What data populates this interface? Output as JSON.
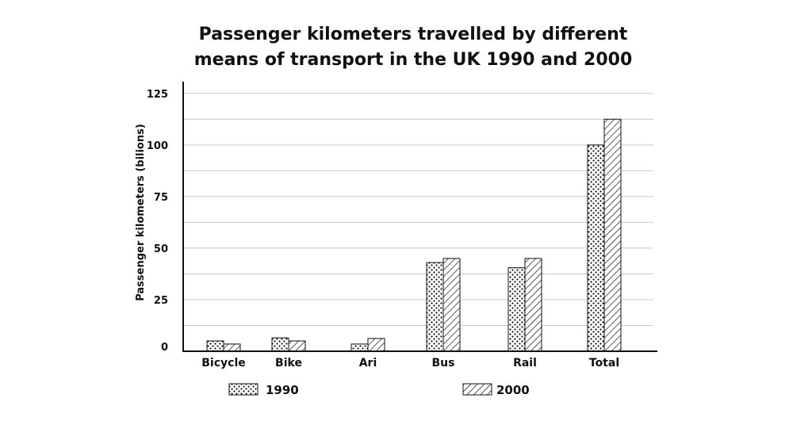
{
  "chart_data": {
    "type": "bar",
    "title": [
      "Passenger kilometers travelled by different",
      "means of transport in the UK 1990 and 2000"
    ],
    "xlabel": "",
    "ylabel": "Passenger kilometers (bilions)",
    "ylim": [
      0,
      128
    ],
    "yticks": [
      0,
      25,
      50,
      75,
      100,
      125
    ],
    "grid": true,
    "categories": [
      "Bicycle",
      "Bike",
      "Ari",
      "Bus",
      "Rail",
      "Total"
    ],
    "series": [
      {
        "name": "1990",
        "pattern": "dots",
        "values": [
          5,
          6.5,
          3.5,
          43,
          40.5,
          100
        ]
      },
      {
        "name": "2000",
        "pattern": "hatch",
        "values": [
          3.5,
          5,
          6.2,
          45,
          45,
          112.5
        ]
      }
    ],
    "legend_position": "bottom"
  },
  "colors": {
    "ink": "#111111",
    "grid": "#c8c8c8",
    "background": "#ffffff"
  }
}
